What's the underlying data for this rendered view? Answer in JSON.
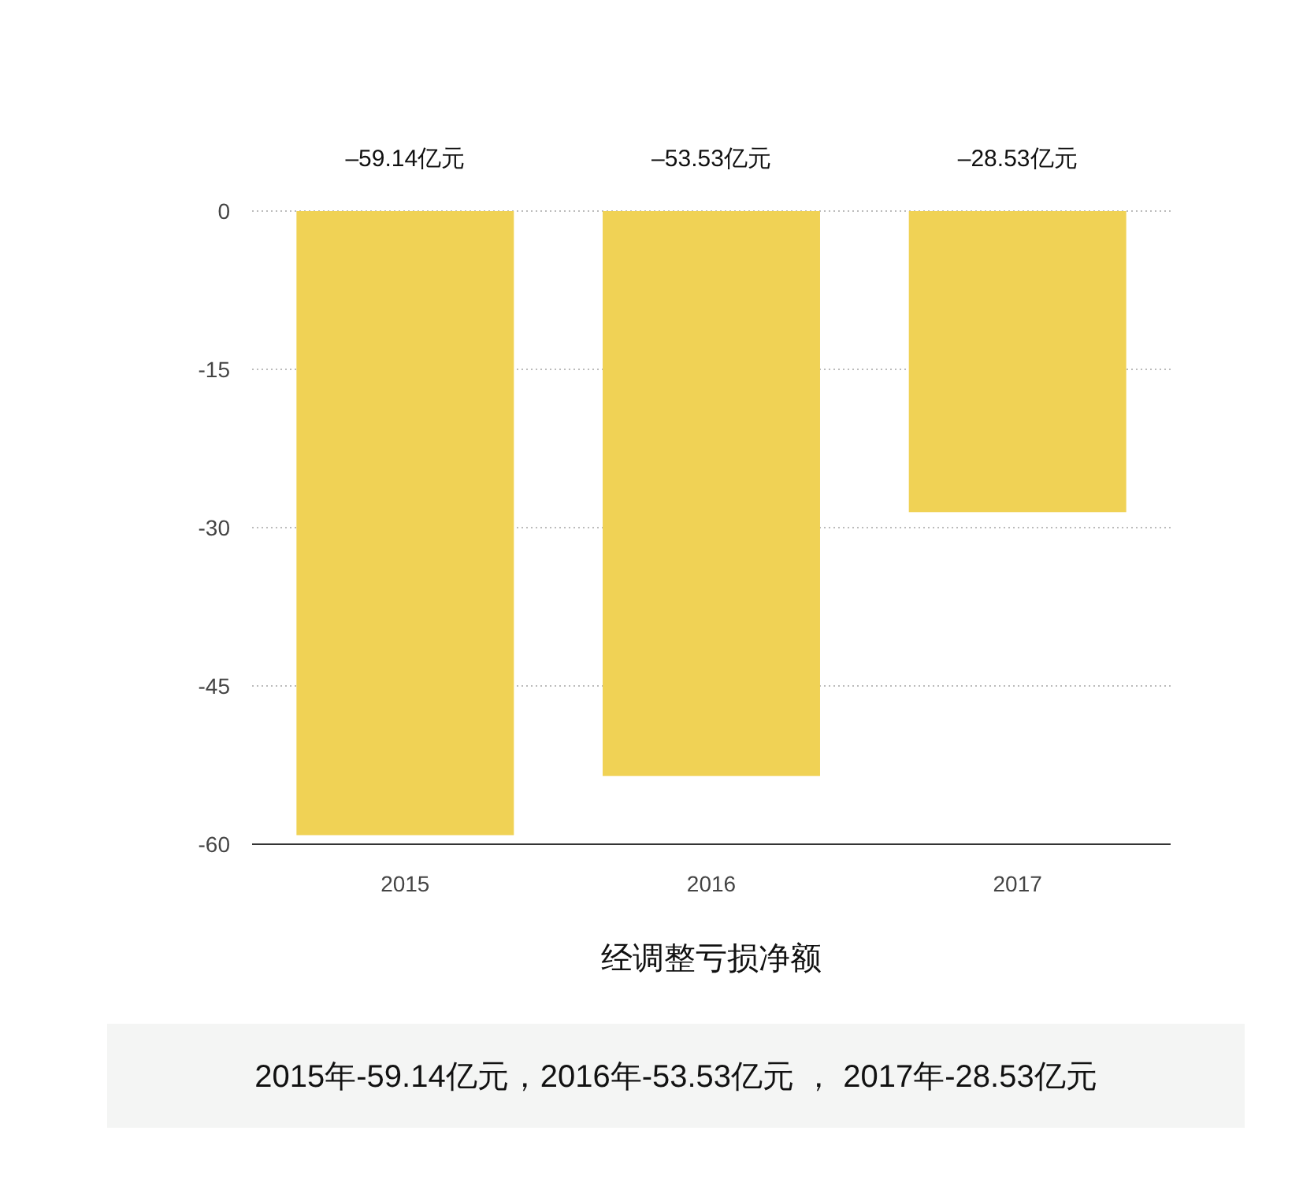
{
  "chart_data": {
    "type": "bar",
    "xlabel": "经调整亏损净额",
    "categories": [
      "2015",
      "2016",
      "2017"
    ],
    "values": [
      -59.14,
      -53.53,
      -28.53
    ],
    "value_labels": [
      "–59.14亿元",
      "–53.53亿元",
      "–28.53亿元"
    ],
    "color": "#f0d255",
    "ylim": [
      -60,
      0
    ],
    "yticks": [
      0,
      -15,
      -30,
      -45,
      -60
    ],
    "grid": "y",
    "annotations": [
      "2015年-59.14亿元，2016年-53.53亿元 ， 2017年-28.53亿元"
    ]
  }
}
